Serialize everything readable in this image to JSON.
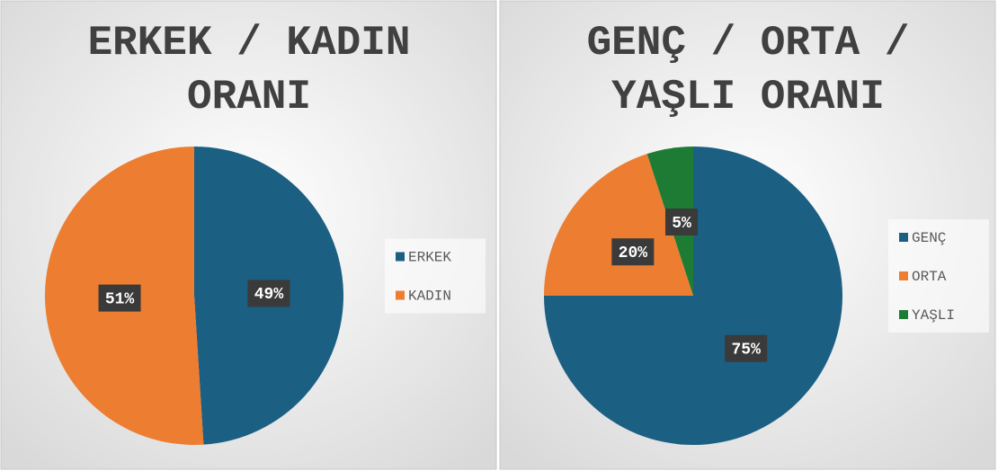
{
  "chart_data": [
    {
      "type": "pie",
      "title": "ERKEK / KADIN ORANI",
      "categories": [
        "ERKEK",
        "KADIN"
      ],
      "values": [
        49,
        51
      ],
      "value_labels": [
        "49%",
        "51%"
      ],
      "colors": [
        "#1b5f83",
        "#ed7d31"
      ]
    },
    {
      "type": "pie",
      "title": "GENÇ / ORTA / YAŞLI ORANI",
      "categories": [
        "GENÇ",
        "ORTA",
        "YAŞLI"
      ],
      "values": [
        75,
        20,
        5
      ],
      "value_labels": [
        "75%",
        "20%",
        "5%"
      ],
      "colors": [
        "#1b5f83",
        "#ed7d31",
        "#1e7b34"
      ]
    }
  ]
}
